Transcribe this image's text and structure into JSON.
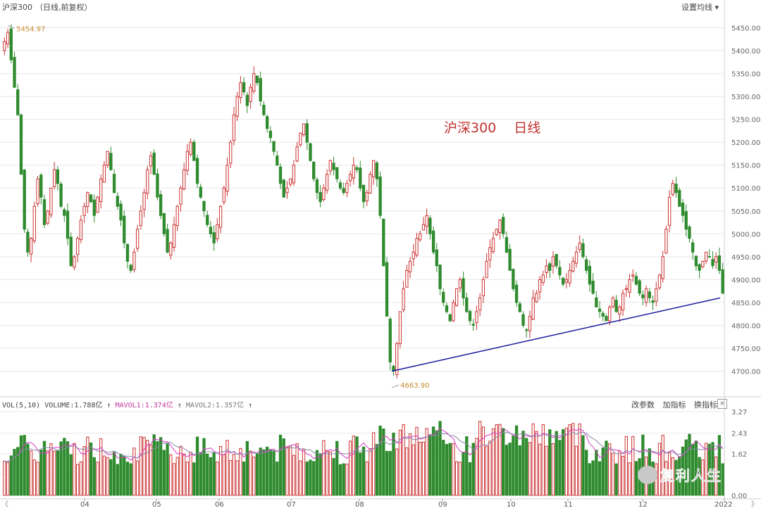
{
  "header": {
    "title": "沪深300",
    "subtitle": "（日线,前复权）"
  },
  "toolbar": {
    "ma_settings": "设置均线"
  },
  "annotation": {
    "chart_label": "沪深300　 日线"
  },
  "volume_panel": {
    "label": "VOL(5,10)",
    "volume": "VOLUME:1.788亿",
    "mavol1": "MAVOL1:1.374亿",
    "mavol2": "MAVOL2:1.357亿",
    "arrow": "↑",
    "buttons": [
      "改参数",
      "加指标",
      "换指标"
    ],
    "close": "×"
  },
  "watermark": {
    "text": "复利人生",
    "icon": "wechat-icon"
  },
  "colors": {
    "up": "#cc3333",
    "down": "#2e8b2e",
    "trendline": "#1a1a9c",
    "ma1": "#d63cc6",
    "ma2": "#8888aa",
    "grid": "#e8e8e8"
  },
  "chart_data": [
    {
      "type": "candlestick",
      "title": "沪深300　 日线",
      "ylim": [
        4650,
        5480
      ],
      "yticks": [
        4700.0,
        4750.0,
        4800.0,
        4850.0,
        4900.0,
        4950.0,
        5000.0,
        5050.0,
        5100.0,
        5150.0,
        5200.0,
        5250.0,
        5300.0,
        5350.0,
        5400.0,
        5450.0
      ],
      "yticklabels": [
        "4700.00",
        "4750.00",
        "4800.00",
        "4850.00",
        "4900.00",
        "4950.00",
        "5000.00",
        "5050.00",
        "5100.00",
        "5150.00",
        "5200.00",
        "5250.00",
        "5300.00",
        "5350.00",
        "5400.00",
        "5450.00"
      ],
      "xticklabels": [
        "04",
        "05",
        "06",
        "07",
        "08",
        "09",
        "10",
        "11",
        "12",
        "2022"
      ],
      "high_annotation": {
        "label": "5454.97",
        "value": 5454.97
      },
      "low_annotation": {
        "label": "4663.90",
        "value": 4663.9
      },
      "trendline": {
        "from": {
          "x": "07-28",
          "value": 4700
        },
        "to": {
          "x": "2022-01",
          "value": 4860
        }
      },
      "closes": [
        5420,
        5440,
        5380,
        5320,
        5260,
        5130,
        5010,
        4960,
        4990,
        5060,
        5120,
        5080,
        5020,
        5050,
        5100,
        5140,
        5110,
        5060,
        5040,
        4990,
        4930,
        4950,
        4990,
        5030,
        5060,
        5090,
        5070,
        5040,
        5080,
        5120,
        5150,
        5180,
        5140,
        5090,
        5060,
        5030,
        4980,
        4940,
        4920,
        4960,
        5010,
        5050,
        5090,
        5140,
        5170,
        5130,
        5080,
        5040,
        5000,
        4960,
        4980,
        5020,
        5060,
        5100,
        5140,
        5180,
        5200,
        5160,
        5110,
        5080,
        5050,
        5020,
        5000,
        4980,
        5020,
        5060,
        5100,
        5150,
        5200,
        5260,
        5300,
        5330,
        5310,
        5280,
        5320,
        5350,
        5330,
        5290,
        5260,
        5230,
        5210,
        5180,
        5150,
        5110,
        5080,
        5100,
        5120,
        5150,
        5190,
        5220,
        5240,
        5200,
        5160,
        5120,
        5090,
        5070,
        5100,
        5130,
        5160,
        5140,
        5120,
        5100,
        5090,
        5110,
        5130,
        5150,
        5140,
        5100,
        5070,
        5090,
        5130,
        5160,
        5120,
        5040,
        4930,
        4820,
        4720,
        4700,
        4760,
        4830,
        4880,
        4920,
        4940,
        4960,
        4990,
        5000,
        5020,
        5040,
        5000,
        4960,
        4930,
        4880,
        4850,
        4830,
        4810,
        4850,
        4880,
        4900,
        4860,
        4830,
        4810,
        4800,
        4830,
        4860,
        4900,
        4940,
        4970,
        4990,
        5010,
        5030,
        5000,
        4960,
        4920,
        4880,
        4850,
        4830,
        4800,
        4790,
        4820,
        4860,
        4870,
        4900,
        4910,
        4930,
        4920,
        4950,
        4930,
        4910,
        4890,
        4900,
        4920,
        4940,
        4960,
        4980,
        4950,
        4920,
        4890,
        4870,
        4840,
        4830,
        4820,
        4810,
        4840,
        4860,
        4830,
        4840,
        4870,
        4880,
        4900,
        4910,
        4890,
        4870,
        4860,
        4880,
        4860,
        4850,
        4880,
        4910,
        4950,
        5010,
        5080,
        5110,
        5090,
        5060,
        5040,
        5010,
        4990,
        4960,
        4930,
        4920,
        4940,
        4960,
        4950,
        4930,
        4950,
        4920,
        4870
      ]
    },
    {
      "type": "bar",
      "title": "VOL(5,10)",
      "ylim": [
        0,
        3.27
      ],
      "yticks": [
        0.0,
        0.82,
        1.62,
        2.43,
        3.27
      ],
      "yticklabels": [
        "0.00",
        "",
        "1.62",
        "2.43",
        "3.27"
      ],
      "unit": "亿",
      "series": [
        {
          "name": "VOLUME",
          "last": 1.788
        },
        {
          "name": "MAVOL1",
          "last": 1.374
        },
        {
          "name": "MAVOL2",
          "last": 1.357
        }
      ]
    }
  ]
}
